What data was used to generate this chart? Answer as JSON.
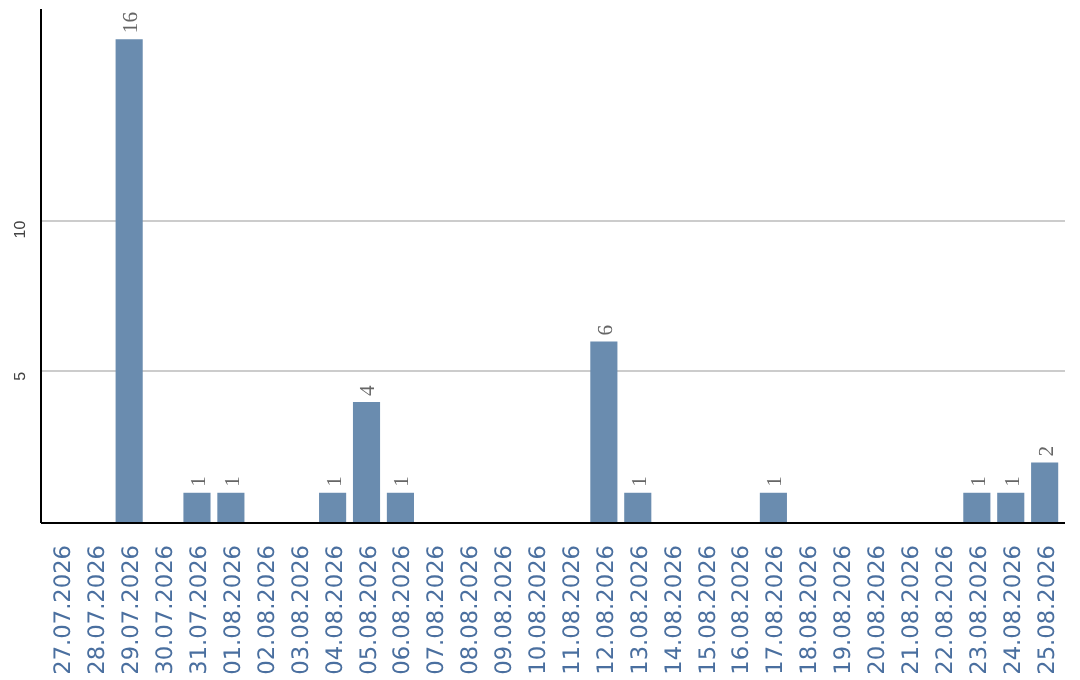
{
  "chart_data": {
    "type": "bar",
    "categories": [
      "27.07.2026",
      "28.07.2026",
      "29.07.2026",
      "30.07.2026",
      "31.07.2026",
      "01.08.2026",
      "02.08.2026",
      "03.08.2026",
      "04.08.2026",
      "05.08.2026",
      "06.08.2026",
      "07.08.2026",
      "08.08.2026",
      "09.08.2026",
      "10.08.2026",
      "11.08.2026",
      "12.08.2026",
      "13.08.2026",
      "14.08.2026",
      "15.08.2026",
      "16.08.2026",
      "17.08.2026",
      "18.08.2026",
      "19.08.2026",
      "20.08.2026",
      "21.08.2026",
      "22.08.2026",
      "23.08.2026",
      "24.08.2026",
      "25.08.2026"
    ],
    "values": [
      0,
      0,
      16,
      0,
      1,
      1,
      0,
      0,
      1,
      4,
      1,
      0,
      0,
      0,
      0,
      0,
      6,
      1,
      0,
      0,
      0,
      1,
      0,
      0,
      0,
      0,
      0,
      1,
      1,
      2
    ],
    "value_labels": [
      null,
      null,
      "16",
      null,
      "1",
      "1",
      null,
      null,
      "1",
      "4",
      "1",
      null,
      null,
      null,
      null,
      null,
      "6",
      "1",
      null,
      null,
      null,
      "1",
      null,
      null,
      null,
      null,
      null,
      "1",
      "1",
      "2"
    ],
    "color": "#6a8caf",
    "ylim": [
      0,
      17
    ],
    "yticks": [
      5,
      10
    ],
    "grid": "y"
  }
}
